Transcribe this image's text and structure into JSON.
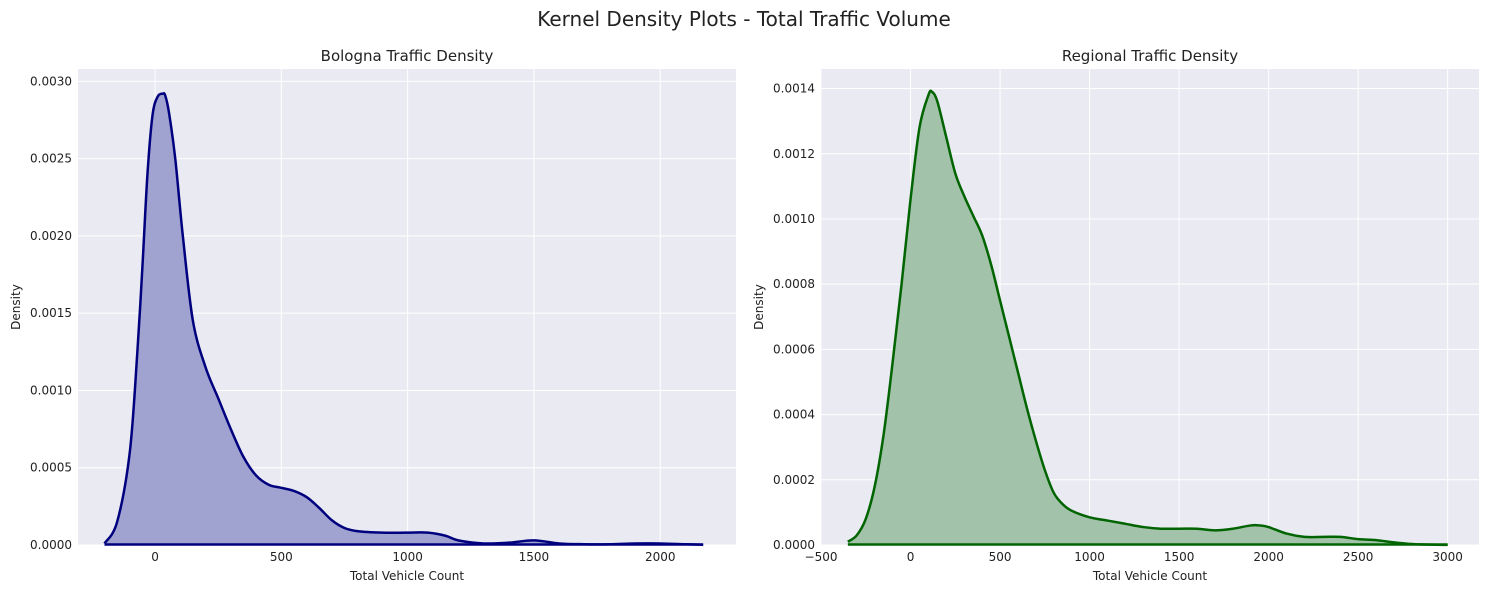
{
  "figure": {
    "suptitle": "Kernel Density Plots - Total Traffic Volume"
  },
  "chart_data": [
    {
      "type": "area",
      "title": "Bologna Traffic Density",
      "xlabel": "Total Vehicle Count",
      "ylabel": "Density",
      "xlim": [
        -305,
        2300
      ],
      "ylim": [
        0,
        0.00308
      ],
      "xticks": [
        0,
        500,
        1000,
        1500,
        2000
      ],
      "xtick_labels": [
        "0",
        "500",
        "1000",
        "1500",
        "2000"
      ],
      "yticks": [
        0,
        0.0005,
        0.001,
        0.0015,
        0.002,
        0.0025,
        0.003
      ],
      "ytick_labels": [
        "0.0000",
        "0.0005",
        "0.0010",
        "0.0015",
        "0.0020",
        "0.0025",
        "0.0030"
      ],
      "grid": true,
      "line_color": "#00007f",
      "fill_color": "#a0a2d0",
      "series": [
        {
          "x": [
            -200,
            -150,
            -100,
            -70,
            -50,
            -30,
            -10,
            10,
            30,
            40,
            55,
            80,
            110,
            150,
            200,
            250,
            300,
            350,
            400,
            450,
            500,
            550,
            600,
            650,
            700,
            750,
            800,
            900,
            1000,
            1080,
            1150,
            1200,
            1300,
            1400,
            1500,
            1600,
            1700,
            1800,
            1900,
            2000,
            2100,
            2170
          ],
          "y": [
            1e-05,
            0.00015,
            0.0006,
            0.00125,
            0.0018,
            0.0024,
            0.00278,
            0.0029,
            0.00292,
            0.00291,
            0.0028,
            0.0025,
            0.002,
            0.00145,
            0.00115,
            0.00095,
            0.00075,
            0.00057,
            0.00045,
            0.00039,
            0.00037,
            0.00035,
            0.00031,
            0.00024,
            0.00016,
            0.00011,
            9e-05,
            8e-05,
            8e-05,
            8e-05,
            6e-05,
            3e-05,
            1e-05,
            1.5e-05,
            3e-05,
            1e-05,
            5e-06,
            5e-06,
            1e-05,
            1e-05,
            5e-06,
            2e-06
          ]
        }
      ]
    },
    {
      "type": "area",
      "title": "Regional Traffic Density",
      "xlabel": "Total Vehicle Count",
      "ylabel": "Density",
      "xlim": [
        -500,
        3175
      ],
      "ylim": [
        0,
        0.00146
      ],
      "xticks": [
        -500,
        0,
        500,
        1000,
        1500,
        2000,
        2500,
        3000
      ],
      "xtick_labels": [
        "−500",
        "0",
        "500",
        "1000",
        "1500",
        "2000",
        "2500",
        "3000"
      ],
      "yticks": [
        0,
        0.0002,
        0.0004,
        0.0006,
        0.0008,
        0.001,
        0.0012,
        0.0014
      ],
      "ytick_labels": [
        "0.0000",
        "0.0002",
        "0.0004",
        "0.0006",
        "0.0008",
        "0.0010",
        "0.0012",
        "0.0014"
      ],
      "grid": true,
      "line_color": "#006400",
      "fill_color": "#a3c2aa",
      "series": [
        {
          "x": [
            -350,
            -300,
            -250,
            -200,
            -150,
            -100,
            -50,
            0,
            50,
            100,
            120,
            150,
            200,
            250,
            300,
            350,
            400,
            450,
            500,
            550,
            600,
            650,
            700,
            750,
            800,
            850,
            900,
            1000,
            1100,
            1200,
            1300,
            1400,
            1500,
            1600,
            1700,
            1800,
            1900,
            1950,
            2000,
            2100,
            2200,
            2300,
            2400,
            2500,
            2600,
            2700,
            2800,
            2900,
            3000
          ],
          "y": [
            1e-05,
            3e-05,
            8e-05,
            0.00018,
            0.00034,
            0.00056,
            0.0008,
            0.00106,
            0.00128,
            0.00138,
            0.00139,
            0.00136,
            0.00125,
            0.00114,
            0.00107,
            0.00101,
            0.00095,
            0.00086,
            0.00075,
            0.00064,
            0.00053,
            0.00042,
            0.00032,
            0.00023,
            0.00016,
            0.000125,
            0.000105,
            8.5e-05,
            7.5e-05,
            6.5e-05,
            5.5e-05,
            5e-05,
            5e-05,
            5e-05,
            4.5e-05,
            5e-05,
            6e-05,
            6e-05,
            5.5e-05,
            3.5e-05,
            2.5e-05,
            2.5e-05,
            2.5e-05,
            1.8e-05,
            1.5e-05,
            8e-06,
            3e-06,
            1e-06,
            5e-07
          ]
        }
      ]
    }
  ]
}
